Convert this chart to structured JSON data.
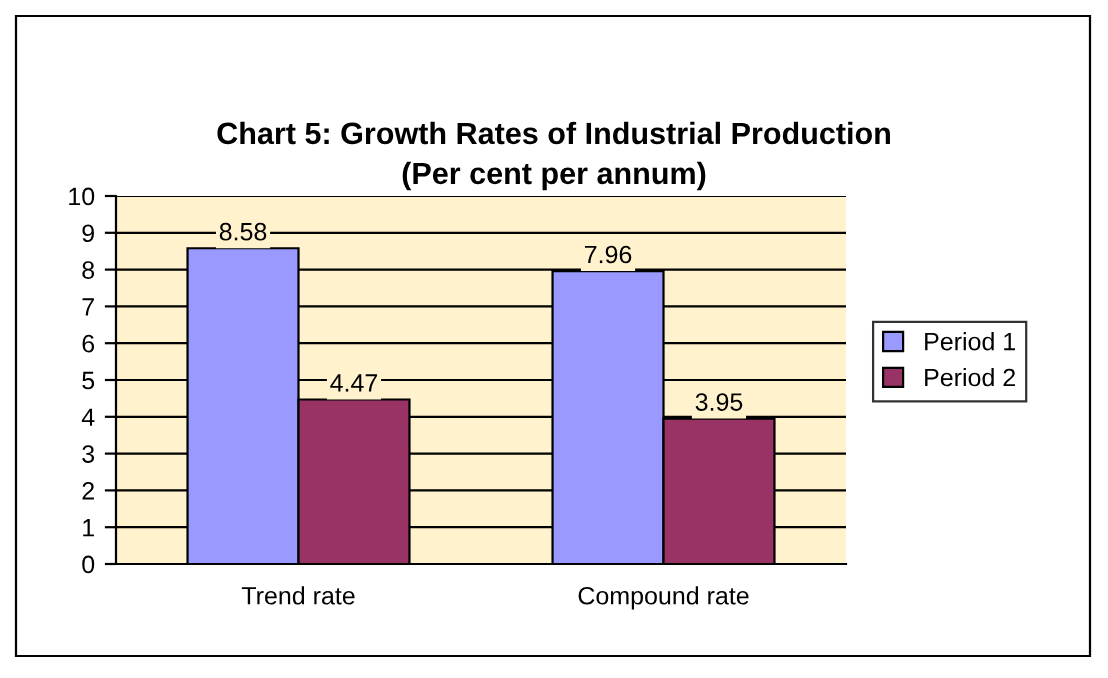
{
  "chart_data": {
    "type": "bar",
    "title": "Chart 5: Growth Rates of Industrial Production",
    "subtitle": "(Per cent per annum)",
    "categories": [
      "Trend rate",
      "Compound rate"
    ],
    "series": [
      {
        "name": "Period 1",
        "color": "#9999ff",
        "values": [
          8.58,
          7.96
        ]
      },
      {
        "name": "Period 2",
        "color": "#993366",
        "values": [
          4.47,
          3.95
        ]
      }
    ],
    "ylim": [
      0,
      10
    ],
    "yticks": [
      0,
      1,
      2,
      3,
      4,
      5,
      6,
      7,
      8,
      9,
      10
    ],
    "grid": "y",
    "legend": "right",
    "data_labels": true
  }
}
